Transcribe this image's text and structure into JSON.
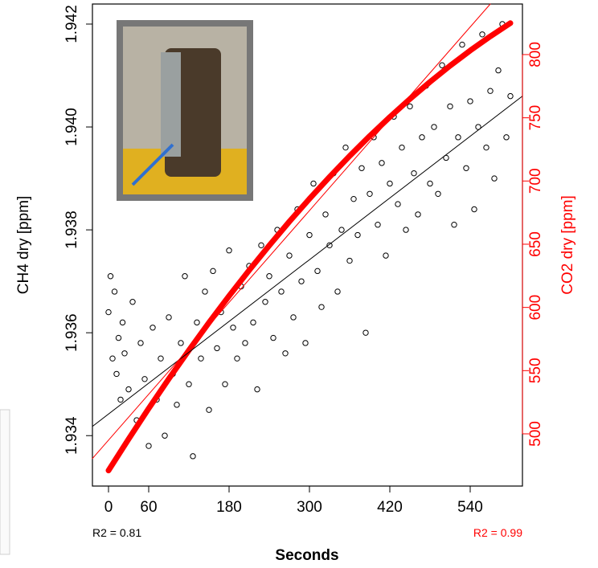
{
  "chart_data": {
    "type": "scatter",
    "x_label": "Seconds",
    "y_label": "CH4 dry [ppm]",
    "y2_label": "CO2 dry [ppm]",
    "xlim": [
      -24,
      618
    ],
    "ylim": [
      1.93302,
      1.94239
    ],
    "y2lim": [
      458.7,
      840
    ],
    "xticks": [
      0,
      60,
      180,
      300,
      420,
      540
    ],
    "yticks": [
      1.934,
      1.936,
      1.938,
      {
        "value": 1.94,
        "label": "1.940"
      },
      1.942
    ],
    "y2ticks": [
      500,
      550,
      600,
      650,
      700,
      750,
      800
    ],
    "y2_color": "#ff0000",
    "annotations": [
      {
        "text": "R2 =  0.81",
        "color": "#000000"
      },
      {
        "text": "R2 =  0.99",
        "color": "#ff0000"
      }
    ],
    "series": [
      {
        "color": "#000000",
        "mode": "points",
        "x": [
          0,
          3,
          6,
          9,
          12,
          15,
          18,
          21,
          24,
          30,
          36,
          42,
          48,
          54,
          60,
          66,
          72,
          78,
          84,
          90,
          96,
          102,
          108,
          114,
          120,
          126,
          132,
          138,
          144,
          150,
          156,
          162,
          168,
          174,
          180,
          186,
          192,
          198,
          204,
          210,
          216,
          222,
          228,
          234,
          240,
          246,
          252,
          258,
          264,
          270,
          276,
          282,
          288,
          294,
          300,
          306,
          312,
          318,
          324,
          330,
          336,
          342,
          348,
          354,
          360,
          366,
          372,
          378,
          384,
          390,
          396,
          402,
          408,
          414,
          420,
          426,
          432,
          438,
          444,
          450,
          456,
          462,
          468,
          474,
          480,
          486,
          492,
          498,
          504,
          510,
          516,
          522,
          528,
          534,
          540,
          546,
          552,
          558,
          564,
          570,
          576,
          582,
          588,
          594,
          600
        ],
        "values": [
          1.9364,
          1.9371,
          1.9355,
          1.9368,
          1.9352,
          1.9359,
          1.9347,
          1.9362,
          1.9356,
          1.9349,
          1.9366,
          1.9343,
          1.9358,
          1.9351,
          1.9338,
          1.9361,
          1.9347,
          1.9355,
          1.934,
          1.9363,
          1.9352,
          1.9346,
          1.9358,
          1.9371,
          1.935,
          1.9336,
          1.9362,
          1.9355,
          1.9368,
          1.9345,
          1.9372,
          1.9357,
          1.9364,
          1.935,
          1.9376,
          1.9361,
          1.9355,
          1.9369,
          1.9358,
          1.9373,
          1.9362,
          1.9349,
          1.9377,
          1.9366,
          1.9371,
          1.9359,
          1.938,
          1.9368,
          1.9356,
          1.9375,
          1.9363,
          1.9384,
          1.937,
          1.9358,
          1.9379,
          1.9389,
          1.9372,
          1.9365,
          1.9383,
          1.9377,
          1.9391,
          1.9368,
          1.938,
          1.9396,
          1.9374,
          1.9386,
          1.9379,
          1.9392,
          1.936,
          1.9387,
          1.9398,
          1.9381,
          1.9393,
          1.9375,
          1.9389,
          1.9402,
          1.9385,
          1.9396,
          1.938,
          1.9404,
          1.9391,
          1.9383,
          1.9398,
          1.9408,
          1.9389,
          1.94,
          1.9387,
          1.9412,
          1.9394,
          1.9404,
          1.9381,
          1.9398,
          1.9416,
          1.9392,
          1.9405,
          1.9384,
          1.94,
          1.9418,
          1.9396,
          1.9407,
          1.939,
          1.9411,
          1.942,
          1.9398,
          1.9406
        ]
      },
      {
        "color": "#ff0000",
        "mode": "thick",
        "axis": "y2",
        "x": [
          0,
          30,
          60,
          90,
          120,
          150,
          180,
          210,
          240,
          270,
          300,
          330,
          360,
          390,
          420,
          450,
          480,
          510,
          540,
          570,
          600
        ],
        "values": [
          471,
          495.9,
          520.1,
          543.5,
          566.1,
          588,
          609.1,
          629.4,
          649,
          667.9,
          685.9,
          703.2,
          719.8,
          735.6,
          750.6,
          764.9,
          778.4,
          791.2,
          803.2,
          814.4,
          824.9
        ]
      },
      {
        "color": "#000000",
        "mode": "line",
        "x": [
          -24,
          618
        ],
        "values": [
          1.93418,
          1.9406
        ]
      },
      {
        "color": "#ff0000",
        "mode": "line",
        "axis": "y2",
        "x": [
          -24,
          570
        ],
        "values": [
          480.5,
          840
        ]
      }
    ]
  }
}
